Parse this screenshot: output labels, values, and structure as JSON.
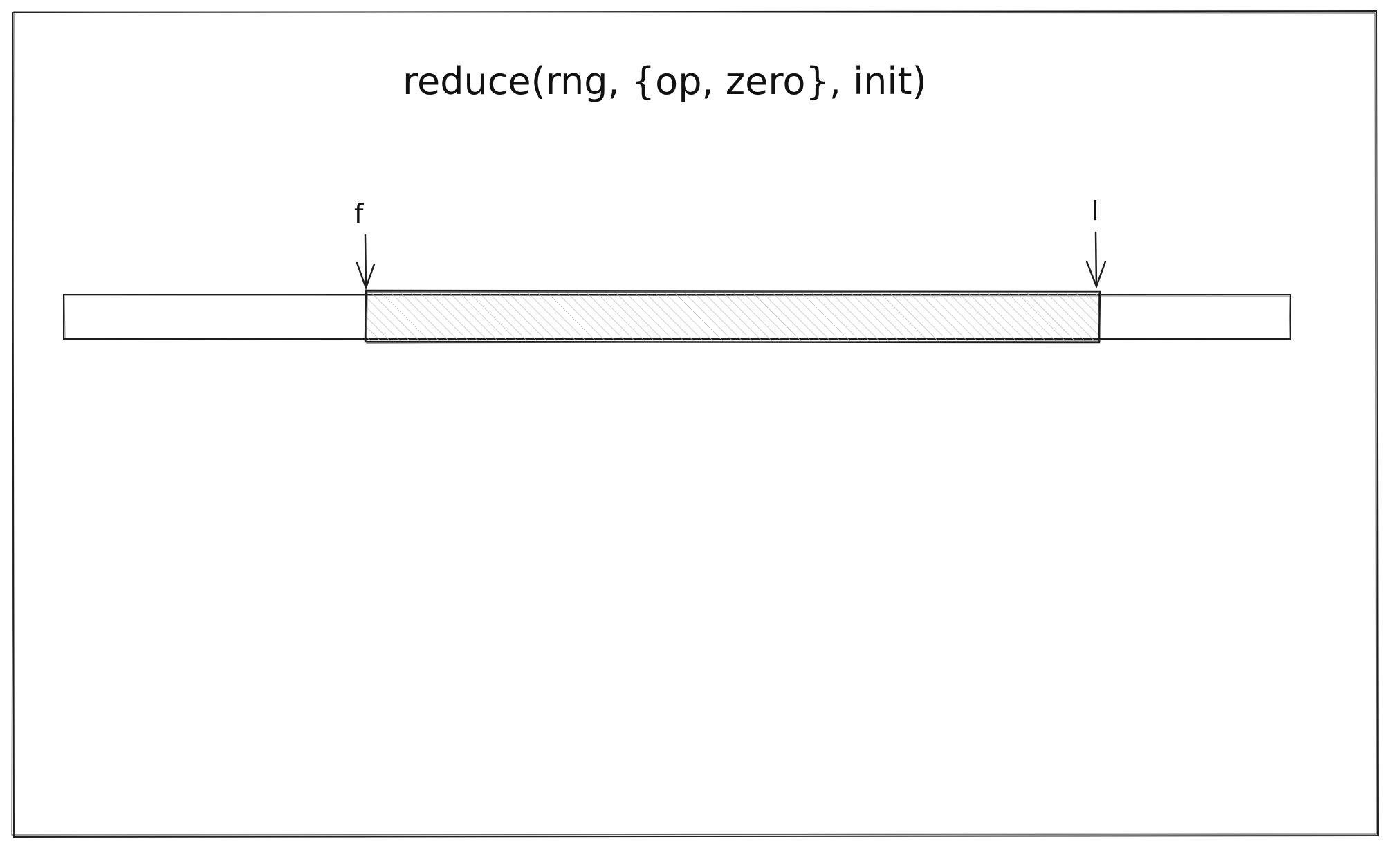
{
  "title": "reduce(rng, {op, zero}, init)",
  "pointers": {
    "first": {
      "label": "f"
    },
    "last": {
      "label": "l"
    }
  },
  "colors": {
    "stroke": "#1e1e1e",
    "hatch": "#b8b8b8",
    "background": "#ffffff"
  }
}
